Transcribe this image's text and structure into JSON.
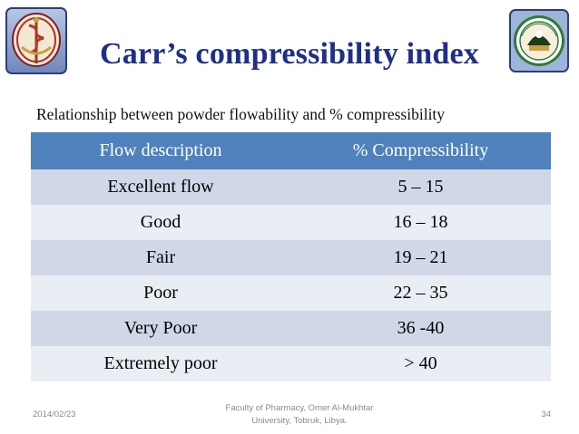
{
  "slide": {
    "title": "Carr’s compressibility index",
    "subtitle": "Relationship between powder flowability and % compressibility"
  },
  "table": {
    "headers": [
      "Flow description",
      "% Compressibility"
    ],
    "rows": [
      [
        "Excellent flow",
        "5 – 15"
      ],
      [
        "Good",
        "16 – 18"
      ],
      [
        "Fair",
        "19 – 21"
      ],
      [
        "Poor",
        "22 – 35"
      ],
      [
        "Very Poor",
        "36 -40"
      ],
      [
        "Extremely poor",
        "> 40"
      ]
    ]
  },
  "footer": {
    "date": "2014/02/23",
    "institution_line1": "Faculty of Pharmacy, Omer Al-Mukhtar",
    "institution_line2": "University, Tobruk, Libya.",
    "page_number": "34"
  },
  "colors": {
    "title": "#1f2f86",
    "header_bg": "#4f81bd",
    "row_odd": "#d0d8e8",
    "row_even": "#e9edf4"
  },
  "icons": {
    "left_logo": "faculty-of-pharmacy-logo",
    "right_logo": "university-seal-logo"
  }
}
